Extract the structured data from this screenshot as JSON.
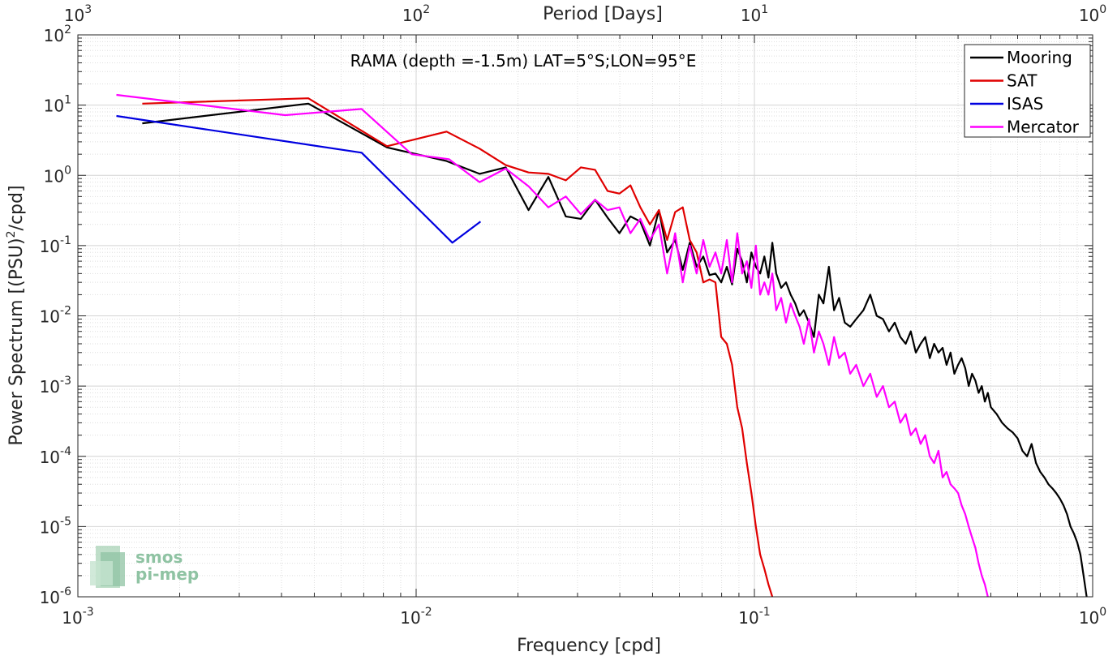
{
  "chart_data": {
    "type": "line",
    "xscale": "log",
    "yscale": "log",
    "xlim": [
      0.001,
      1
    ],
    "ylim": [
      1e-06,
      100
    ],
    "grid": true,
    "xlabel": "Frequency [cpd]",
    "ylabel": "Power Spectrum [(PSU)²/cpd]",
    "ylabel_base": "Power Spectrum [(PSU)",
    "ylabel_sup": "2",
    "ylabel_tail": "/cpd]",
    "top_axis_label": "Period [Days]",
    "annotation": "RAMA (depth =-1.5m) LAT=5°S;LON=95°E",
    "legend_position": "top-right",
    "x_ticks": [
      {
        "base": "10",
        "exp": "-3"
      },
      {
        "base": "10",
        "exp": "-2"
      },
      {
        "base": "10",
        "exp": "-1"
      },
      {
        "base": "10",
        "exp": "0"
      }
    ],
    "top_ticks": [
      {
        "base": "10",
        "exp": "3"
      },
      {
        "base": "10",
        "exp": "2"
      },
      {
        "base": "10",
        "exp": "1"
      },
      {
        "base": "10",
        "exp": "0"
      }
    ],
    "y_ticks": [
      {
        "base": "10",
        "exp": "2"
      },
      {
        "base": "10",
        "exp": "1"
      },
      {
        "base": "10",
        "exp": "0"
      },
      {
        "base": "10",
        "exp": "-1"
      },
      {
        "base": "10",
        "exp": "-2"
      },
      {
        "base": "10",
        "exp": "-3"
      },
      {
        "base": "10",
        "exp": "-4"
      },
      {
        "base": "10",
        "exp": "-5"
      },
      {
        "base": "10",
        "exp": "-6"
      }
    ],
    "series": [
      {
        "name": "Mooring",
        "color": "#000000",
        "x": [
          0.00155,
          0.0048,
          0.0082,
          0.0123,
          0.0154,
          0.0184,
          0.0215,
          0.0246,
          0.0277,
          0.0307,
          0.0338,
          0.0368,
          0.0399,
          0.043,
          0.046,
          0.0491,
          0.0522,
          0.0552,
          0.0583,
          0.0614,
          0.0644,
          0.0675,
          0.0706,
          0.0737,
          0.0767,
          0.0798,
          0.0829,
          0.0859,
          0.089,
          0.092,
          0.095,
          0.098,
          0.101,
          0.104,
          0.107,
          0.11,
          0.113,
          0.116,
          0.12,
          0.124,
          0.128,
          0.132,
          0.136,
          0.14,
          0.145,
          0.15,
          0.155,
          0.16,
          0.166,
          0.172,
          0.178,
          0.185,
          0.192,
          0.2,
          0.21,
          0.22,
          0.23,
          0.24,
          0.25,
          0.26,
          0.27,
          0.28,
          0.29,
          0.3,
          0.31,
          0.32,
          0.33,
          0.34,
          0.35,
          0.36,
          0.37,
          0.38,
          0.39,
          0.4,
          0.41,
          0.42,
          0.43,
          0.44,
          0.45,
          0.46,
          0.47,
          0.48,
          0.49,
          0.5,
          0.52,
          0.54,
          0.56,
          0.58,
          0.6,
          0.62,
          0.64,
          0.66,
          0.68,
          0.7,
          0.72,
          0.74,
          0.76,
          0.78,
          0.8,
          0.82,
          0.84,
          0.86,
          0.88,
          0.9,
          0.92,
          0.94,
          0.96
        ],
        "values": [
          5.5,
          10.5,
          2.5,
          1.6,
          1.05,
          1.3,
          0.32,
          0.95,
          0.26,
          0.24,
          0.45,
          0.25,
          0.15,
          0.26,
          0.22,
          0.1,
          0.32,
          0.08,
          0.12,
          0.045,
          0.11,
          0.05,
          0.07,
          0.038,
          0.04,
          0.03,
          0.05,
          0.028,
          0.09,
          0.06,
          0.03,
          0.08,
          0.05,
          0.04,
          0.07,
          0.035,
          0.11,
          0.04,
          0.025,
          0.03,
          0.02,
          0.015,
          0.01,
          0.012,
          0.008,
          0.005,
          0.02,
          0.015,
          0.05,
          0.012,
          0.018,
          0.008,
          0.007,
          0.009,
          0.012,
          0.02,
          0.01,
          0.009,
          0.006,
          0.008,
          0.005,
          0.004,
          0.006,
          0.003,
          0.004,
          0.005,
          0.0025,
          0.004,
          0.003,
          0.0035,
          0.002,
          0.003,
          0.0015,
          0.002,
          0.0025,
          0.0018,
          0.001,
          0.0015,
          0.0012,
          0.0008,
          0.001,
          0.0006,
          0.0008,
          0.0005,
          0.0004,
          0.0003,
          0.00025,
          0.00022,
          0.00018,
          0.00012,
          0.0001,
          0.00015,
          8e-05,
          6e-05,
          5e-05,
          4e-05,
          3.5e-05,
          3e-05,
          2.5e-05,
          2e-05,
          1.5e-05,
          1e-05,
          8e-06,
          6e-06,
          4e-06,
          2e-06,
          1e-06
        ]
      },
      {
        "name": "SAT",
        "color": "#e00000",
        "x": [
          0.00155,
          0.0048,
          0.0082,
          0.0123,
          0.0154,
          0.0184,
          0.0215,
          0.0246,
          0.0277,
          0.0307,
          0.0338,
          0.0368,
          0.0399,
          0.043,
          0.046,
          0.0491,
          0.0522,
          0.0552,
          0.0583,
          0.0614,
          0.0644,
          0.0675,
          0.0706,
          0.0737,
          0.0767,
          0.0798,
          0.0829,
          0.0859,
          0.089,
          0.092,
          0.095,
          0.098,
          0.101,
          0.104,
          0.107,
          0.11,
          0.113,
          0.116,
          0.118
        ],
        "values": [
          10.5,
          12.5,
          2.6,
          4.2,
          2.4,
          1.4,
          1.1,
          1.05,
          0.85,
          1.3,
          1.2,
          0.6,
          0.55,
          0.72,
          0.35,
          0.2,
          0.32,
          0.12,
          0.3,
          0.35,
          0.12,
          0.08,
          0.03,
          0.033,
          0.03,
          0.005,
          0.004,
          0.002,
          0.0005,
          0.00025,
          8e-05,
          3e-05,
          1e-05,
          4e-06,
          2.5e-06,
          1.5e-06,
          1e-06,
          7e-07,
          5e-07
        ]
      },
      {
        "name": "ISAS",
        "color": "#0000e0",
        "x": [
          0.0013,
          0.0069,
          0.0128,
          0.0155
        ],
        "values": [
          7,
          2.1,
          0.11,
          0.22
        ]
      },
      {
        "name": "Mercator",
        "color": "#ff00ff",
        "x": [
          0.0013,
          0.0041,
          0.0069,
          0.0097,
          0.0125,
          0.0154,
          0.0184,
          0.0215,
          0.0246,
          0.0277,
          0.0307,
          0.0338,
          0.0368,
          0.0399,
          0.043,
          0.046,
          0.0491,
          0.0522,
          0.0552,
          0.0583,
          0.0614,
          0.0644,
          0.0675,
          0.0706,
          0.0737,
          0.0767,
          0.0798,
          0.0829,
          0.0859,
          0.089,
          0.092,
          0.095,
          0.098,
          0.101,
          0.104,
          0.107,
          0.11,
          0.113,
          0.116,
          0.12,
          0.124,
          0.128,
          0.132,
          0.136,
          0.14,
          0.145,
          0.15,
          0.155,
          0.16,
          0.166,
          0.172,
          0.178,
          0.185,
          0.192,
          0.2,
          0.21,
          0.22,
          0.23,
          0.24,
          0.25,
          0.26,
          0.27,
          0.28,
          0.29,
          0.3,
          0.31,
          0.32,
          0.33,
          0.34,
          0.35,
          0.36,
          0.37,
          0.38,
          0.39,
          0.4,
          0.41,
          0.42,
          0.43,
          0.44,
          0.45,
          0.46,
          0.47,
          0.48,
          0.49
        ],
        "values": [
          14,
          7.2,
          8.8,
          2.0,
          1.7,
          0.8,
          1.25,
          0.7,
          0.35,
          0.5,
          0.28,
          0.45,
          0.32,
          0.35,
          0.15,
          0.24,
          0.12,
          0.2,
          0.04,
          0.15,
          0.03,
          0.1,
          0.04,
          0.12,
          0.05,
          0.08,
          0.04,
          0.12,
          0.03,
          0.15,
          0.04,
          0.06,
          0.025,
          0.1,
          0.02,
          0.03,
          0.02,
          0.04,
          0.012,
          0.018,
          0.008,
          0.015,
          0.01,
          0.007,
          0.004,
          0.009,
          0.003,
          0.006,
          0.004,
          0.002,
          0.005,
          0.0025,
          0.003,
          0.0015,
          0.002,
          0.001,
          0.0015,
          0.0007,
          0.001,
          0.0005,
          0.0006,
          0.0003,
          0.0004,
          0.0002,
          0.00025,
          0.00015,
          0.0002,
          0.0001,
          8e-05,
          0.00012,
          5e-05,
          6e-05,
          4e-05,
          3.5e-05,
          3e-05,
          2e-05,
          1.5e-05,
          1e-05,
          7e-06,
          5e-06,
          3e-06,
          2e-06,
          1.5e-06,
          1e-06
        ]
      }
    ]
  },
  "logo": {
    "line1": "smos",
    "line2": "pi-mep",
    "color": "#8fc3a3"
  }
}
